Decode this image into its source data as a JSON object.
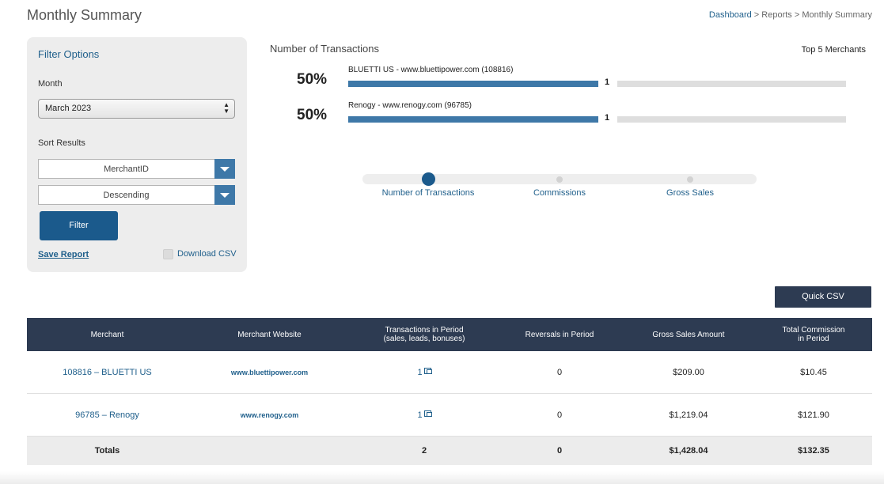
{
  "page": {
    "title": "Monthly Summary"
  },
  "breadcrumb": {
    "dashboard": "Dashboard",
    "sep1": " > ",
    "reports": "Reports",
    "sep2": " > ",
    "current": "Monthly Summary"
  },
  "filter": {
    "title": "Filter Options",
    "month_label": "Month",
    "month_value": "March 2023",
    "sort_label": "Sort Results",
    "sort_field": "MerchantID",
    "sort_order": "Descending",
    "filter_button": "Filter",
    "save_report": "Save Report",
    "download_csv": "Download CSV",
    "download_checked": false
  },
  "chart": {
    "title": "Number of Transactions",
    "top_label": "Top 5 Merchants"
  },
  "chart_data": {
    "type": "bar",
    "categories": [
      "BLUETTI US - www.bluettipower.com (108816)",
      "Renogy - www.renogy.com (96785)"
    ],
    "values": [
      1,
      1
    ],
    "percent_labels": [
      "50%",
      "50%"
    ],
    "count_labels": [
      "1",
      "1"
    ],
    "colors": {
      "bar": "#3e78a8",
      "track": "#dedede"
    }
  },
  "slider": {
    "tabs": [
      "Number of Transactions",
      "Commissions",
      "Gross Sales"
    ],
    "active": 0
  },
  "quick_csv": "Quick CSV",
  "table": {
    "headers": [
      "Merchant",
      "Merchant Website",
      "Transactions in Period\n(sales, leads, bonuses)",
      "Reversals in Period",
      "Gross Sales Amount",
      "Total Commission\nin Period"
    ],
    "rows": [
      {
        "merchant": "108816 – BLUETTI US",
        "website": "www.bluettipower.com",
        "transactions": "1",
        "reversals": "0",
        "gross": "$209.00",
        "commission": "$10.45"
      },
      {
        "merchant": "96785 – Renogy",
        "website": "www.renogy.com",
        "transactions": "1",
        "reversals": "0",
        "gross": "$1,219.04",
        "commission": "$121.90"
      }
    ],
    "totals": {
      "label": "Totals",
      "transactions": "2",
      "reversals": "0",
      "gross": "$1,428.04",
      "commission": "$132.35"
    }
  },
  "colors": {
    "accent": "#1b5a8c",
    "header_bg": "#2d3b52",
    "link": "#1f5f8b"
  }
}
